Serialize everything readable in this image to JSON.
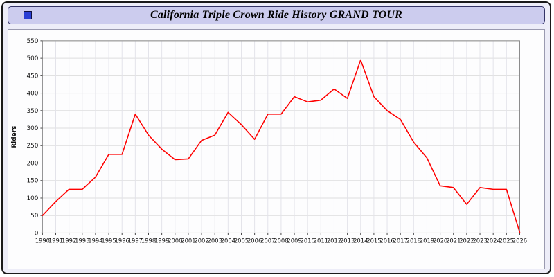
{
  "window": {
    "title": "California Triple Crown Ride History GRAND TOUR"
  },
  "colors": {
    "page_background": "#ededf8",
    "titlebar_background": "#ccccee",
    "title_icon": "#2a3fd4",
    "line_color": "#ff0000",
    "gridline": "#dddddd",
    "plot_border": "#888888"
  },
  "chart_data": {
    "type": "line",
    "title": "California Triple Crown Ride History GRAND TOUR",
    "xlabel": "",
    "ylabel": "Riders",
    "ylim": [
      0,
      550
    ],
    "ytick_step": 50,
    "grid": true,
    "legend_position": "none",
    "line_color": "#ff0000",
    "x": [
      1990,
      1991,
      1992,
      1993,
      1994,
      1995,
      1996,
      1997,
      1998,
      1999,
      2000,
      2001,
      2002,
      2003,
      2004,
      2005,
      2006,
      2007,
      2008,
      2009,
      2010,
      2011,
      2012,
      2013,
      2014,
      2015,
      2016,
      2017,
      2018,
      2019,
      2020,
      2021,
      2022,
      2023,
      2024,
      2025,
      2026
    ],
    "series": [
      {
        "name": "Riders",
        "values": [
          50,
          90,
          125,
          125,
          160,
          225,
          225,
          340,
          280,
          240,
          210,
          212,
          265,
          280,
          345,
          310,
          268,
          340,
          340,
          390,
          375,
          380,
          412,
          385,
          495,
          390,
          350,
          325,
          260,
          215,
          135,
          130,
          82,
          130,
          125,
          125,
          2
        ]
      }
    ]
  }
}
